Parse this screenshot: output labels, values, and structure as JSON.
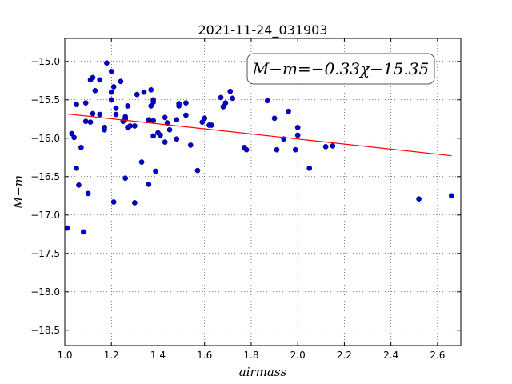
{
  "chart_data": {
    "type": "scatter",
    "title": "2021-11-24_031903",
    "xlabel": "airmass",
    "ylabel": "M−m",
    "xlim": [
      1.0,
      2.7
    ],
    "ylim": [
      -14.7,
      -18.7
    ],
    "y_inverted": true,
    "grid": true,
    "grid_style": "dotted",
    "marker_color": "#0000cc",
    "fit_line_color": "#ff0000",
    "xticks": [
      1.0,
      1.2,
      1.4,
      1.6,
      1.8,
      2.0,
      2.2,
      2.4,
      2.6
    ],
    "xtick_labels": [
      "1.0",
      "1.2",
      "1.4",
      "1.6",
      "1.8",
      "2.0",
      "2.2",
      "2.4",
      "2.6"
    ],
    "yticks": [
      -15.0,
      -15.5,
      -16.0,
      -16.5,
      -17.0,
      -17.5,
      -18.0,
      -18.5
    ],
    "ytick_labels": [
      "−15.0",
      "−15.5",
      "−16.0",
      "−16.5",
      "−17.0",
      "−17.5",
      "−18.0",
      "−18.5"
    ],
    "annotation": "M−m=−0.33χ−15.35",
    "annotation_placement": "top-right",
    "fit": {
      "slope": -0.33,
      "intercept": -15.35,
      "x_range": [
        1.01,
        2.66
      ]
    },
    "points": [
      [
        1.01,
        -17.17
      ],
      [
        1.03,
        -15.94
      ],
      [
        1.04,
        -15.99
      ],
      [
        1.05,
        -15.56
      ],
      [
        1.05,
        -16.39
      ],
      [
        1.06,
        -16.61
      ],
      [
        1.07,
        -16.12
      ],
      [
        1.08,
        -17.22
      ],
      [
        1.09,
        -15.54
      ],
      [
        1.09,
        -15.78
      ],
      [
        1.1,
        -16.72
      ],
      [
        1.11,
        -15.79
      ],
      [
        1.11,
        -15.24
      ],
      [
        1.12,
        -15.21
      ],
      [
        1.12,
        -15.68
      ],
      [
        1.13,
        -15.38
      ],
      [
        1.15,
        -15.24
      ],
      [
        1.15,
        -15.69
      ],
      [
        1.17,
        -15.86
      ],
      [
        1.17,
        -15.89
      ],
      [
        1.18,
        -15.02
      ],
      [
        1.2,
        -15.13
      ],
      [
        1.2,
        -15.4
      ],
      [
        1.2,
        -15.5
      ],
      [
        1.21,
        -15.33
      ],
      [
        1.21,
        -16.83
      ],
      [
        1.22,
        -15.69
      ],
      [
        1.22,
        -15.61
      ],
      [
        1.24,
        -15.26
      ],
      [
        1.25,
        -15.78
      ],
      [
        1.26,
        -15.75
      ],
      [
        1.26,
        -15.72
      ],
      [
        1.26,
        -16.52
      ],
      [
        1.27,
        -15.86
      ],
      [
        1.27,
        -15.58
      ],
      [
        1.28,
        -15.84
      ],
      [
        1.3,
        -15.84
      ],
      [
        1.3,
        -16.84
      ],
      [
        1.31,
        -15.43
      ],
      [
        1.33,
        -16.31
      ],
      [
        1.34,
        -15.4
      ],
      [
        1.36,
        -15.76
      ],
      [
        1.36,
        -16.6
      ],
      [
        1.37,
        -15.37
      ],
      [
        1.37,
        -15.58
      ],
      [
        1.38,
        -15.53
      ],
      [
        1.38,
        -15.5
      ],
      [
        1.38,
        -15.77
      ],
      [
        1.38,
        -15.97
      ],
      [
        1.39,
        -16.43
      ],
      [
        1.4,
        -15.93
      ],
      [
        1.41,
        -15.96
      ],
      [
        1.43,
        -16.05
      ],
      [
        1.43,
        -15.73
      ],
      [
        1.44,
        -15.8
      ],
      [
        1.45,
        -15.89
      ],
      [
        1.48,
        -15.76
      ],
      [
        1.48,
        -16.01
      ],
      [
        1.49,
        -15.58
      ],
      [
        1.49,
        -15.55
      ],
      [
        1.52,
        -15.54
      ],
      [
        1.52,
        -15.7
      ],
      [
        1.54,
        -16.09
      ],
      [
        1.57,
        -16.42
      ],
      [
        1.59,
        -15.79
      ],
      [
        1.6,
        -15.74
      ],
      [
        1.62,
        -15.83
      ],
      [
        1.63,
        -15.83
      ],
      [
        1.67,
        -15.47
      ],
      [
        1.68,
        -15.59
      ],
      [
        1.69,
        -15.54
      ],
      [
        1.71,
        -15.39
      ],
      [
        1.72,
        -15.48
      ],
      [
        1.77,
        -16.12
      ],
      [
        1.78,
        -16.15
      ],
      [
        1.87,
        -15.51
      ],
      [
        1.9,
        -15.74
      ],
      [
        1.91,
        -16.15
      ],
      [
        1.94,
        -16.01
      ],
      [
        1.96,
        -15.65
      ],
      [
        1.99,
        -16.15
      ],
      [
        2.0,
        -15.86
      ],
      [
        2.0,
        -15.96
      ],
      [
        2.05,
        -16.39
      ],
      [
        2.12,
        -16.11
      ],
      [
        2.15,
        -16.1
      ],
      [
        2.52,
        -16.79
      ],
      [
        2.66,
        -16.75
      ]
    ]
  }
}
